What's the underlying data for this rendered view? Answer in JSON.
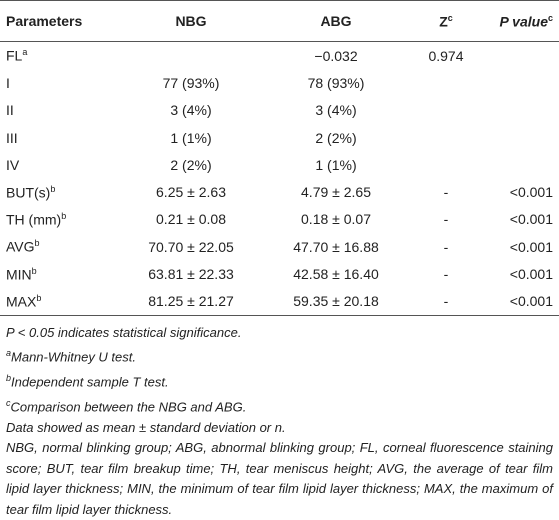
{
  "table": {
    "header": [
      {
        "text": "Parameters"
      },
      {
        "text": "NBG"
      },
      {
        "text": "ABG"
      },
      {
        "text": "Z",
        "sup": "c"
      },
      {
        "text": "P value",
        "sup": "c"
      }
    ],
    "rows": [
      {
        "parameter": "FL",
        "sup": "a",
        "abg": "−0.032",
        "z": "0.974"
      },
      {
        "parameter": "I",
        "nbg": "77 (93%)",
        "abg": "78 (93%)"
      },
      {
        "parameter": "II",
        "nbg": "3 (4%)",
        "abg": "3 (4%)"
      },
      {
        "parameter": "III",
        "nbg": "1 (1%)",
        "abg": "2 (2%)"
      },
      {
        "parameter": "IV",
        "nbg": "2 (2%)",
        "abg": "1 (1%)"
      },
      {
        "parameter": "BUT(s)",
        "sup": "b",
        "nbg": "6.25 ± 2.63",
        "abg": "4.79 ± 2.65",
        "z": "-",
        "p": "<0.001"
      },
      {
        "parameter": "TH (mm)",
        "sup": "b",
        "nbg": "0.21 ± 0.08",
        "abg": "0.18 ± 0.07",
        "z": "-",
        "p": "<0.001"
      },
      {
        "parameter": "AVG",
        "sup": "b",
        "nbg": "70.70 ± 22.05",
        "abg": "47.70 ± 16.88",
        "z": "-",
        "p": "<0.001"
      },
      {
        "parameter": "MIN",
        "sup": "b",
        "nbg": "63.81 ± 22.33",
        "abg": "42.58 ± 16.40",
        "z": "-",
        "p": "<0.001"
      },
      {
        "parameter": "MAX",
        "sup": "b",
        "nbg": "81.25 ± 21.27",
        "abg": "59.35 ± 20.18",
        "z": "-",
        "p": "<0.001"
      }
    ]
  },
  "footnotes": [
    {
      "text": "P < 0.05 indicates statistical significance."
    },
    {
      "sup": "a",
      "text": "Mann-Whitney U test."
    },
    {
      "sup": "b",
      "text": "Independent sample T test."
    },
    {
      "sup": "c",
      "text": "Comparison between the NBG and ABG."
    },
    {
      "text": "Data showed as mean ± standard deviation or n."
    }
  ],
  "abbreviations": "NBG, normal blinking group; ABG, abnormal blinking group; FL, corneal fluorescence staining score; BUT, tear film breakup time; TH, tear meniscus height; AVG, the average of tear film lipid layer thickness; MIN, the minimum of tear film lipid layer thickness; MAX, the maximum of tear film lipid layer thickness."
}
